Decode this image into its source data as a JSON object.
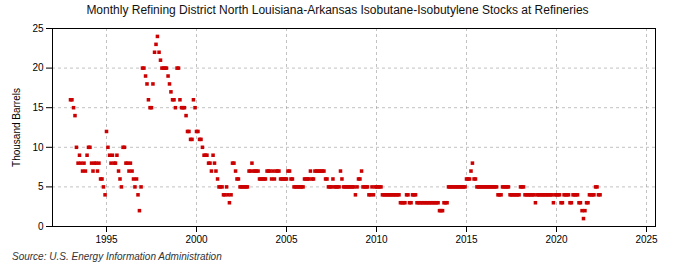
{
  "chart_data": {
    "type": "scatter",
    "title": "Monthly Refining District North Louisiana-Arkansas Isobutane-Isobutylene Stocks at Refineries",
    "ylabel": "Thousand Barrels",
    "source": "Source: U.S. Energy Information Administration",
    "color": "#cc0000",
    "marker": "square",
    "grid": true,
    "xlim": [
      1992.0,
      2025.5
    ],
    "ylim": [
      0,
      25
    ],
    "xticks": [
      1995,
      2000,
      2005,
      2010,
      2015,
      2020,
      2025
    ],
    "yticks": [
      0,
      5,
      10,
      15,
      20,
      25
    ],
    "x": [
      1993.0,
      1993.08,
      1993.17,
      1993.25,
      1993.33,
      1993.42,
      1993.5,
      1993.58,
      1993.67,
      1993.75,
      1993.83,
      1993.92,
      1994.0,
      1994.08,
      1994.17,
      1994.25,
      1994.33,
      1994.42,
      1994.5,
      1994.58,
      1994.67,
      1994.75,
      1994.83,
      1994.92,
      1995.0,
      1995.08,
      1995.17,
      1995.25,
      1995.33,
      1995.42,
      1995.5,
      1995.58,
      1995.67,
      1995.75,
      1995.83,
      1995.92,
      1996.0,
      1996.08,
      1996.17,
      1996.25,
      1996.33,
      1996.42,
      1996.5,
      1996.58,
      1996.67,
      1996.75,
      1996.83,
      1996.92,
      1997.0,
      1997.08,
      1997.17,
      1997.25,
      1997.33,
      1997.42,
      1997.5,
      1997.58,
      1997.67,
      1997.75,
      1997.83,
      1997.92,
      1998.0,
      1998.08,
      1998.17,
      1998.25,
      1998.33,
      1998.42,
      1998.5,
      1998.58,
      1998.67,
      1998.75,
      1998.83,
      1998.92,
      1999.0,
      1999.08,
      1999.17,
      1999.25,
      1999.33,
      1999.42,
      1999.5,
      1999.58,
      1999.67,
      1999.75,
      1999.83,
      1999.92,
      2000.0,
      2000.08,
      2000.17,
      2000.25,
      2000.33,
      2000.42,
      2000.5,
      2000.58,
      2000.67,
      2000.75,
      2000.83,
      2000.92,
      2001.0,
      2001.08,
      2001.17,
      2001.25,
      2001.33,
      2001.42,
      2001.5,
      2001.58,
      2001.67,
      2001.75,
      2001.83,
      2001.92,
      2002.0,
      2002.08,
      2002.17,
      2002.25,
      2002.33,
      2002.42,
      2002.5,
      2002.58,
      2002.67,
      2002.75,
      2002.83,
      2002.92,
      2003.0,
      2003.08,
      2003.17,
      2003.25,
      2003.33,
      2003.42,
      2003.5,
      2003.58,
      2003.67,
      2003.75,
      2003.83,
      2003.92,
      2004.0,
      2004.08,
      2004.17,
      2004.25,
      2004.33,
      2004.42,
      2004.5,
      2004.58,
      2004.67,
      2004.75,
      2004.83,
      2004.92,
      2005.0,
      2005.08,
      2005.17,
      2005.25,
      2005.33,
      2005.42,
      2005.5,
      2005.58,
      2005.67,
      2005.75,
      2005.83,
      2005.92,
      2006.0,
      2006.08,
      2006.17,
      2006.25,
      2006.33,
      2006.42,
      2006.5,
      2006.58,
      2006.67,
      2006.75,
      2006.83,
      2006.92,
      2007.0,
      2007.08,
      2007.17,
      2007.25,
      2007.33,
      2007.42,
      2007.5,
      2007.58,
      2007.67,
      2007.75,
      2007.83,
      2007.92,
      2008.0,
      2008.08,
      2008.17,
      2008.25,
      2008.33,
      2008.42,
      2008.5,
      2008.58,
      2008.67,
      2008.75,
      2008.83,
      2008.92,
      2009.0,
      2009.08,
      2009.17,
      2009.25,
      2009.33,
      2009.42,
      2009.5,
      2009.58,
      2009.67,
      2009.75,
      2009.83,
      2009.92,
      2010.0,
      2010.08,
      2010.17,
      2010.25,
      2010.33,
      2010.42,
      2010.5,
      2010.58,
      2010.67,
      2010.75,
      2010.83,
      2010.92,
      2011.0,
      2011.08,
      2011.17,
      2011.25,
      2011.33,
      2011.42,
      2011.5,
      2011.58,
      2011.67,
      2011.75,
      2011.83,
      2011.92,
      2012.0,
      2012.08,
      2012.17,
      2012.25,
      2012.33,
      2012.42,
      2012.5,
      2012.58,
      2012.67,
      2012.75,
      2012.83,
      2012.92,
      2013.0,
      2013.08,
      2013.17,
      2013.25,
      2013.33,
      2013.42,
      2013.5,
      2013.58,
      2013.67,
      2013.75,
      2013.83,
      2013.92,
      2014.0,
      2014.08,
      2014.17,
      2014.25,
      2014.33,
      2014.42,
      2014.5,
      2014.58,
      2014.67,
      2014.75,
      2014.83,
      2014.92,
      2015.0,
      2015.08,
      2015.17,
      2015.25,
      2015.33,
      2015.42,
      2015.5,
      2015.58,
      2015.67,
      2015.75,
      2015.83,
      2015.92,
      2016.0,
      2016.08,
      2016.17,
      2016.25,
      2016.33,
      2016.42,
      2016.5,
      2016.58,
      2016.67,
      2016.75,
      2016.83,
      2016.92,
      2017.0,
      2017.08,
      2017.17,
      2017.25,
      2017.33,
      2017.42,
      2017.5,
      2017.58,
      2017.67,
      2017.75,
      2017.83,
      2017.92,
      2018.0,
      2018.08,
      2018.17,
      2018.25,
      2018.33,
      2018.42,
      2018.5,
      2018.58,
      2018.67,
      2018.75,
      2018.83,
      2018.92,
      2019.0,
      2019.08,
      2019.17,
      2019.25,
      2019.33,
      2019.42,
      2019.5,
      2019.58,
      2019.67,
      2019.75,
      2019.83,
      2019.92,
      2020.0,
      2020.08,
      2020.17,
      2020.25,
      2020.33,
      2020.42,
      2020.5,
      2020.58,
      2020.67,
      2020.75,
      2020.83,
      2020.92,
      2021.0,
      2021.08,
      2021.17,
      2021.25,
      2021.33,
      2021.42,
      2021.5,
      2021.58,
      2021.67,
      2021.75,
      2021.83,
      2021.92,
      2022.0,
      2022.08,
      2022.17,
      2022.25,
      2022.33,
      2022.42
    ],
    "values": [
      16,
      16,
      15,
      14,
      10,
      8,
      9,
      8,
      7,
      8,
      7,
      9,
      10,
      10,
      8,
      7,
      8,
      8,
      7,
      8,
      6,
      6,
      5,
      4,
      12,
      10,
      9,
      8,
      9,
      8,
      8,
      9,
      7,
      6,
      5,
      10,
      10,
      8,
      8,
      7,
      8,
      7,
      6,
      5,
      6,
      4,
      2,
      5,
      20,
      20,
      19,
      18,
      16,
      15,
      15,
      18,
      22,
      23,
      24,
      22,
      21,
      20,
      20,
      20,
      20,
      19,
      18,
      17,
      16,
      16,
      15,
      20,
      20,
      16,
      15,
      15,
      15,
      14,
      12,
      12,
      11,
      11,
      16,
      15,
      12,
      12,
      11,
      11,
      10,
      9,
      9,
      9,
      8,
      8,
      7,
      9,
      8,
      7,
      6,
      5,
      5,
      5,
      4,
      4,
      5,
      4,
      3,
      4,
      8,
      8,
      7,
      6,
      6,
      5,
      5,
      5,
      5,
      5,
      5,
      7,
      7,
      8,
      7,
      7,
      7,
      7,
      6,
      6,
      6,
      6,
      6,
      7,
      7,
      7,
      6,
      7,
      6,
      7,
      7,
      7,
      6,
      6,
      6,
      6,
      6,
      7,
      7,
      6,
      6,
      5,
      5,
      5,
      5,
      5,
      5,
      5,
      6,
      6,
      6,
      6,
      7,
      6,
      6,
      7,
      7,
      7,
      7,
      7,
      7,
      7,
      6,
      6,
      5,
      5,
      5,
      6,
      5,
      5,
      5,
      5,
      7,
      6,
      5,
      5,
      5,
      5,
      5,
      5,
      5,
      5,
      4,
      5,
      6,
      6,
      7,
      5,
      5,
      5,
      5,
      4,
      4,
      5,
      4,
      5,
      5,
      5,
      5,
      5,
      4,
      4,
      4,
      4,
      4,
      4,
      4,
      4,
      4,
      4,
      4,
      4,
      3,
      3,
      3,
      3,
      4,
      4,
      3,
      3,
      4,
      4,
      4,
      3,
      3,
      3,
      3,
      3,
      3,
      3,
      3,
      3,
      3,
      3,
      3,
      3,
      3,
      3,
      2,
      2,
      2,
      3,
      3,
      3,
      5,
      5,
      5,
      5,
      5,
      5,
      5,
      5,
      5,
      5,
      5,
      5,
      6,
      6,
      6,
      7,
      8,
      6,
      6,
      5,
      5,
      5,
      5,
      5,
      5,
      5,
      5,
      5,
      5,
      5,
      5,
      5,
      5,
      4,
      4,
      4,
      5,
      5,
      5,
      5,
      5,
      4,
      4,
      4,
      4,
      4,
      4,
      4,
      5,
      5,
      5,
      4,
      4,
      4,
      4,
      4,
      4,
      4,
      3,
      4,
      4,
      4,
      4,
      4,
      4,
      4,
      4,
      4,
      4,
      4,
      3,
      4,
      4,
      4,
      4,
      3,
      3,
      4,
      4,
      4,
      4,
      3,
      3,
      4,
      4,
      4,
      4,
      3,
      3,
      2,
      1,
      2,
      3,
      3,
      4,
      4,
      4,
      4,
      5,
      5,
      4,
      4
    ]
  }
}
